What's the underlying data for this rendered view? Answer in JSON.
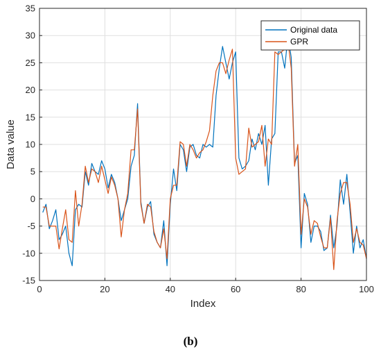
{
  "chart_data": {
    "type": "line",
    "xlabel": "Index",
    "ylabel": "Data value",
    "xlim": [
      0,
      100
    ],
    "ylim": [
      -15,
      35
    ],
    "xticks": [
      0,
      20,
      40,
      60,
      80,
      100
    ],
    "yticks": [
      -15,
      -10,
      -5,
      0,
      5,
      10,
      15,
      20,
      25,
      30,
      35
    ],
    "grid": true,
    "legend_position": "top-right",
    "series": [
      {
        "name": "Original data",
        "color": "#0072BD",
        "x": [
          1,
          2,
          3,
          4,
          5,
          6,
          7,
          8,
          9,
          10,
          11,
          12,
          13,
          14,
          15,
          16,
          17,
          18,
          19,
          20,
          21,
          22,
          23,
          24,
          25,
          26,
          27,
          28,
          29,
          30,
          31,
          32,
          33,
          34,
          35,
          36,
          37,
          38,
          39,
          40,
          41,
          42,
          43,
          44,
          45,
          46,
          47,
          48,
          49,
          50,
          51,
          52,
          53,
          54,
          55,
          56,
          57,
          58,
          59,
          60,
          61,
          62,
          63,
          64,
          65,
          66,
          67,
          68,
          69,
          70,
          71,
          72,
          73,
          74,
          75,
          76,
          77,
          78,
          79,
          80,
          81,
          82,
          83,
          84,
          85,
          86,
          87,
          88,
          89,
          90,
          91,
          92,
          93,
          94,
          95,
          96,
          97,
          98,
          99,
          100
        ],
        "values": [
          -2.5,
          -1,
          -5.5,
          -4,
          -2,
          -7.5,
          -6.5,
          -5,
          -10,
          -12.3,
          -2,
          -1,
          -1.5,
          5,
          2.5,
          6.5,
          5,
          4.5,
          7,
          5.5,
          2,
          4.5,
          3,
          0,
          -4,
          -2,
          0,
          6,
          8,
          17.5,
          -0.5,
          -4.5,
          -1.5,
          -0.5,
          -6.5,
          -8,
          -9,
          -4,
          -12.3,
          -1,
          5.5,
          1.5,
          10,
          9,
          5,
          9.5,
          10,
          8,
          7.5,
          10,
          9.5,
          10,
          9.5,
          19,
          24,
          28,
          25,
          22,
          25,
          27,
          7.5,
          5.5,
          6,
          7,
          11,
          9,
          12,
          10,
          13.5,
          2.5,
          11,
          12,
          27,
          27,
          24,
          30,
          26,
          6.5,
          8,
          -9,
          1,
          -1,
          -8,
          -5,
          -5,
          -6,
          -9.5,
          -9,
          -3,
          -9,
          -5,
          3.5,
          -1,
          4.5,
          -2.5,
          -10,
          -5,
          -9,
          -7.5,
          -11
        ]
      },
      {
        "name": "GPR",
        "color": "#D95319",
        "x": [
          1,
          2,
          3,
          4,
          5,
          6,
          7,
          8,
          9,
          10,
          11,
          12,
          13,
          14,
          15,
          16,
          17,
          18,
          19,
          20,
          21,
          22,
          23,
          24,
          25,
          26,
          27,
          28,
          29,
          30,
          31,
          32,
          33,
          34,
          35,
          36,
          37,
          38,
          39,
          40,
          41,
          42,
          43,
          44,
          45,
          46,
          47,
          48,
          49,
          50,
          51,
          52,
          53,
          54,
          55,
          56,
          57,
          58,
          59,
          60,
          61,
          62,
          63,
          64,
          65,
          66,
          67,
          68,
          69,
          70,
          71,
          72,
          73,
          74,
          75,
          76,
          77,
          78,
          79,
          80,
          81,
          82,
          83,
          84,
          85,
          86,
          87,
          88,
          89,
          90,
          91,
          92,
          93,
          94,
          95,
          96,
          97,
          98,
          99,
          100
        ],
        "values": [
          -1.5,
          -1.5,
          -5,
          -5,
          -5,
          -9.2,
          -5.5,
          -2,
          -7.5,
          -8,
          1.5,
          -5,
          -1,
          6,
          3,
          5.5,
          5,
          3,
          6,
          3.5,
          1,
          4,
          2.5,
          0,
          -7,
          -2,
          1,
          9,
          9,
          16.5,
          -1,
          -4.5,
          -1,
          -1.5,
          -6,
          -8,
          -9,
          -5.5,
          -11,
          0,
          2.5,
          2.5,
          10.5,
          10,
          6,
          10,
          9,
          7.5,
          8.5,
          9,
          10.5,
          12.5,
          19,
          23.5,
          25,
          25,
          23,
          25.5,
          27.5,
          7.5,
          4.5,
          5,
          5.5,
          13,
          9.5,
          10,
          10.5,
          13.5,
          6,
          11,
          10,
          27,
          26.5,
          27,
          27.5,
          29,
          24,
          6,
          10,
          -6.5,
          0,
          -1.5,
          -6.5,
          -4,
          -4.5,
          -7,
          -9,
          -9,
          -3.5,
          -13,
          -4,
          1,
          3,
          3,
          -1,
          -8,
          -5.5,
          -8,
          -8.5,
          -11
        ]
      }
    ]
  },
  "caption": "(b)"
}
